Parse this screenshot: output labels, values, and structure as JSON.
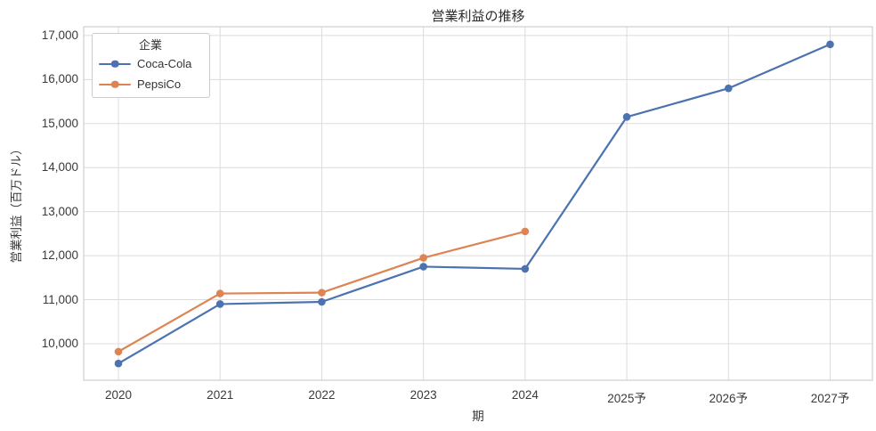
{
  "chart_data": {
    "type": "line",
    "title": "営業利益の推移",
    "xlabel": "期",
    "ylabel": "営業利益（百万ドル）",
    "categories": [
      "2020",
      "2021",
      "2022",
      "2023",
      "2024",
      "2025予",
      "2026予",
      "2027予"
    ],
    "series": [
      {
        "name": "Coca-Cola",
        "color": "#4C72B0",
        "values": [
          9550,
          10900,
          10950,
          11750,
          11700,
          15150,
          15800,
          16800
        ]
      },
      {
        "name": "PepsiCo",
        "color": "#DD8452",
        "values": [
          9820,
          11140,
          11160,
          11950,
          12550,
          null,
          null,
          null
        ]
      }
    ],
    "legend": {
      "title": "企業",
      "position": "upper-left"
    },
    "yticks": [
      10000,
      11000,
      12000,
      13000,
      14000,
      15000,
      16000,
      17000
    ],
    "ytick_labels": [
      "10,000",
      "11,000",
      "12,000",
      "13,000",
      "14,000",
      "15,000",
      "16,000",
      "17,000"
    ],
    "ylim": [
      9170,
      17200
    ],
    "grid": true
  },
  "colors": {
    "background": "#FFFFFF",
    "grid": "#DCDCDC",
    "spine": "#CFCFCF",
    "tick_text": "#3A3A3A",
    "title_text": "#2B2B2B"
  }
}
